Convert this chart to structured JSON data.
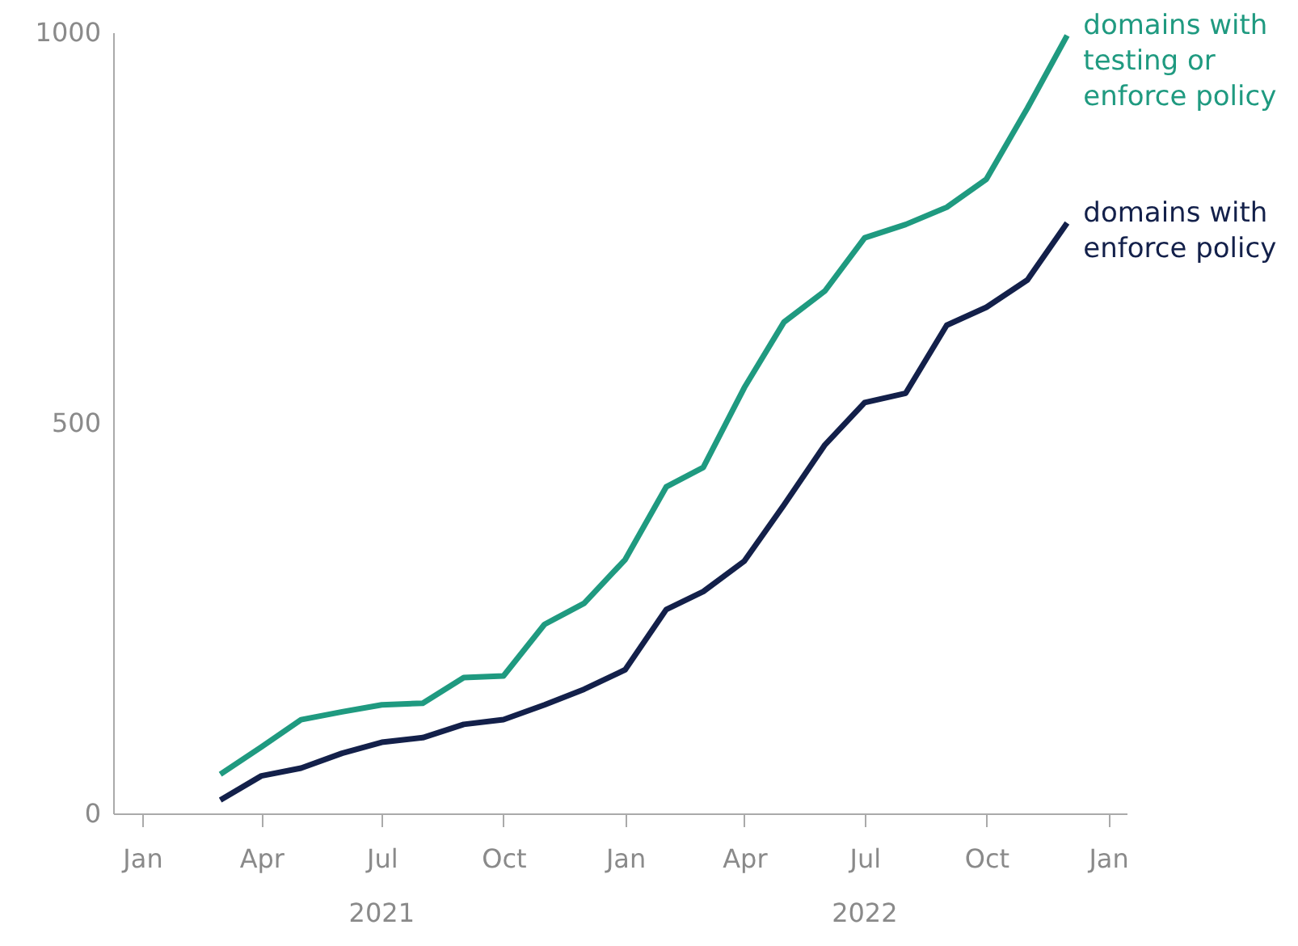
{
  "chart_data": {
    "type": "line",
    "x": [
      "2021-03",
      "2021-04",
      "2021-05",
      "2021-06",
      "2021-07",
      "2021-08",
      "2021-09",
      "2021-10",
      "2021-11",
      "2021-12",
      "2022-01",
      "2022-02",
      "2022-03",
      "2022-04",
      "2022-05",
      "2022-06",
      "2022-07",
      "2022-08",
      "2022-09",
      "2022-10",
      "2022-11",
      "2022-12"
    ],
    "series": [
      {
        "name": "domains with testing or enforce policy",
        "color": "#1f9a80",
        "values": [
          50,
          85,
          120,
          130,
          139,
          141,
          174,
          176,
          242,
          269,
          325,
          418,
          443,
          545,
          629,
          669,
          737,
          754,
          776,
          812,
          903,
          996
        ]
      },
      {
        "name": "domains with enforce policy",
        "color": "#13204a",
        "values": [
          17,
          48,
          58,
          77,
          91,
          97,
          114,
          120,
          139,
          159,
          184,
          261,
          284,
          323,
          395,
          472,
          526,
          538,
          625,
          648,
          683,
          756
        ]
      }
    ],
    "xlim": [
      "2020-12-10",
      "2023-01-15"
    ],
    "xticks": [
      {
        "value": "2021-01",
        "label": "Jan"
      },
      {
        "value": "2021-04",
        "label": "Apr"
      },
      {
        "value": "2021-07",
        "label": "Jul"
      },
      {
        "value": "2021-10",
        "label": "Oct"
      },
      {
        "value": "2022-01",
        "label": "Jan"
      },
      {
        "value": "2022-04",
        "label": "Apr"
      },
      {
        "value": "2022-07",
        "label": "Jul"
      },
      {
        "value": "2022-10",
        "label": "Oct"
      },
      {
        "value": "2023-01",
        "label": "Jan"
      }
    ],
    "ylim": [
      0,
      1000
    ],
    "yticks": [
      0,
      500,
      1000
    ],
    "annotations": [
      "2021",
      "2022"
    ],
    "grid": false,
    "marker": "none",
    "line_style": "solid"
  }
}
